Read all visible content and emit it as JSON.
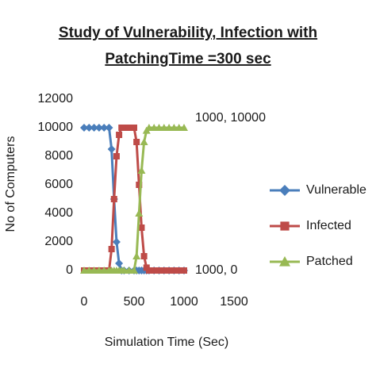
{
  "chart_data": {
    "type": "line",
    "title_lines": [
      "Study of Vulnerability, Infection with",
      "PatchingTime =300 sec"
    ],
    "x_label": "Simulation Time (Sec)",
    "y_label": "No of Computers",
    "x": [
      0,
      50,
      100,
      150,
      200,
      250,
      275,
      300,
      325,
      350,
      375,
      400,
      450,
      500,
      525,
      550,
      575,
      600,
      625,
      650,
      700,
      750,
      800,
      850,
      900,
      950,
      1000
    ],
    "series": [
      {
        "name": "Vulnerable",
        "color": "#4a7ebb",
        "marker": "diamond",
        "values": [
          10000,
          10000,
          10000,
          10000,
          10000,
          10000,
          8500,
          5000,
          2000,
          500,
          0,
          0,
          0,
          0,
          0,
          0,
          0,
          0,
          0,
          0,
          0,
          0,
          0,
          0,
          0,
          0,
          0
        ]
      },
      {
        "name": "Infected",
        "color": "#be4b48",
        "marker": "square",
        "values": [
          0,
          0,
          0,
          0,
          0,
          0,
          1500,
          5000,
          8000,
          9500,
          10000,
          10000,
          10000,
          10000,
          9000,
          6000,
          3000,
          1000,
          200,
          0,
          0,
          0,
          0,
          0,
          0,
          0,
          0
        ]
      },
      {
        "name": "Patched",
        "color": "#98b954",
        "marker": "triangle",
        "values": [
          0,
          0,
          0,
          0,
          0,
          0,
          0,
          0,
          0,
          0,
          0,
          0,
          0,
          0,
          1000,
          4000,
          7000,
          9000,
          9800,
          10000,
          10000,
          10000,
          10000,
          10000,
          10000,
          10000,
          10000
        ]
      }
    ],
    "xlim": [
      0,
      1500
    ],
    "xticks": [
      0,
      500,
      1000,
      1500
    ],
    "ylim": [
      0,
      12000
    ],
    "yticks": [
      0,
      2000,
      4000,
      6000,
      8000,
      10000,
      12000
    ],
    "grid": false,
    "legend": "right",
    "annotations": [
      {
        "text": "1000, 10000",
        "x": 1000,
        "y": 10000
      },
      {
        "text": "1000, 0",
        "x": 1000,
        "y": 0
      }
    ]
  }
}
